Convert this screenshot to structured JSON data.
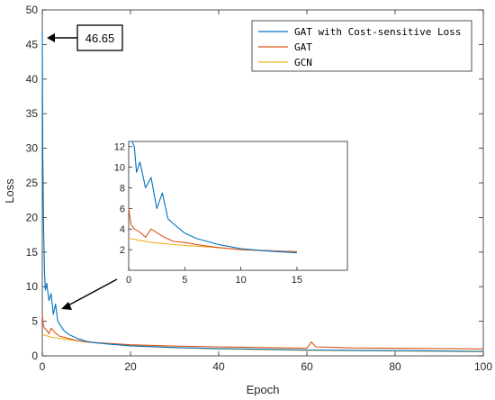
{
  "chart_data": {
    "type": "line",
    "xlabel": "Epoch",
    "ylabel": "Loss",
    "xlim": [
      0,
      100
    ],
    "ylim": [
      0,
      50
    ],
    "xticks": [
      "0",
      "20",
      "40",
      "60",
      "80",
      "100"
    ],
    "yticks": [
      "0",
      "5",
      "10",
      "15",
      "20",
      "25",
      "30",
      "35",
      "40",
      "45",
      "50"
    ],
    "legend_position": "top-right",
    "annotation": "46.65",
    "series": [
      {
        "name": "GAT with Cost-sensitive Loss",
        "color": "#0072BD",
        "x": [
          0,
          0.1,
          0.3,
          0.5,
          0.7,
          1,
          1.5,
          2,
          2.5,
          3,
          3.5,
          4,
          5,
          6,
          7,
          8,
          10,
          12,
          15,
          20,
          30,
          40,
          50,
          60,
          70,
          80,
          90,
          100
        ],
        "y": [
          46.65,
          30,
          18,
          12,
          9.5,
          10.5,
          8,
          9,
          6,
          7.5,
          5,
          4.5,
          3.6,
          3.1,
          2.8,
          2.5,
          2.1,
          1.9,
          1.7,
          1.45,
          1.2,
          1.05,
          0.95,
          0.85,
          0.8,
          0.75,
          0.7,
          0.65
        ]
      },
      {
        "name": "GAT",
        "color": "#D95319",
        "x": [
          0,
          0.2,
          0.5,
          1,
          1.5,
          2,
          3,
          4,
          5,
          6,
          8,
          10,
          15,
          20,
          30,
          40,
          50,
          60,
          61,
          62,
          70,
          80,
          90,
          100
        ],
        "y": [
          6,
          4.5,
          4,
          3.7,
          3.2,
          4,
          3.3,
          2.8,
          2.7,
          2.5,
          2.2,
          2,
          1.8,
          1.6,
          1.4,
          1.3,
          1.2,
          1.1,
          2,
          1.3,
          1.15,
          1.1,
          1.05,
          1.0
        ]
      },
      {
        "name": "GCN",
        "color": "#EDB120",
        "x": [
          0,
          1,
          2,
          3,
          5,
          8,
          10,
          15,
          20,
          30,
          40,
          50,
          60,
          70,
          80,
          90,
          100
        ],
        "y": [
          3.1,
          2.9,
          2.7,
          2.6,
          2.4,
          2.2,
          2.0,
          1.75,
          1.5,
          1.2,
          1.0,
          0.9,
          0.8,
          0.75,
          0.7,
          0.65,
          0.6
        ]
      }
    ],
    "inset": {
      "xlim": [
        0,
        19.5
      ],
      "ylim": [
        0,
        12.5
      ],
      "xticks": [
        "0",
        "5",
        "10",
        "15"
      ],
      "yticks": [
        "2",
        "4",
        "6",
        "8",
        "10",
        "12"
      ]
    }
  }
}
